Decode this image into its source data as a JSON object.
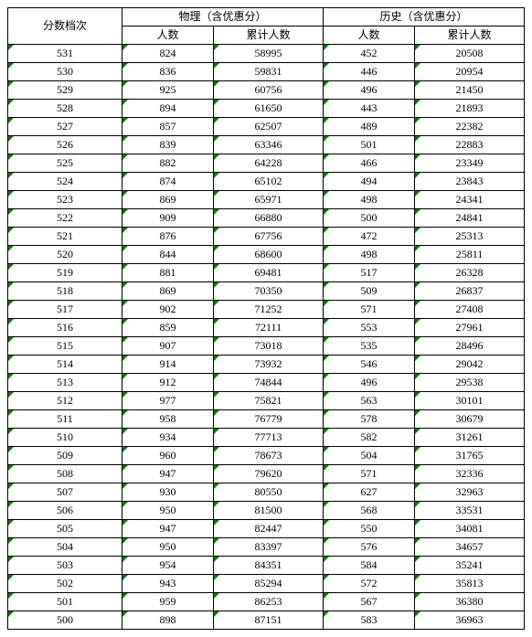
{
  "table": {
    "type": "table",
    "background_color": "#ffffff",
    "border_color": "#000000",
    "marker_color": "#008000",
    "font_family": "SimSun",
    "font_size_pt": 9,
    "header": {
      "score_bracket": "分数档次",
      "physics_group": "物理（含优惠分）",
      "history_group": "历史（含优惠分）",
      "count": "人数",
      "cumulative": "累计人数"
    },
    "columns": [
      "score",
      "phys_count",
      "phys_cum",
      "hist_count",
      "hist_cum"
    ],
    "rows": [
      [
        531,
        824,
        58995,
        452,
        20508
      ],
      [
        530,
        836,
        59831,
        446,
        20954
      ],
      [
        529,
        925,
        60756,
        496,
        21450
      ],
      [
        528,
        894,
        61650,
        443,
        21893
      ],
      [
        527,
        857,
        62507,
        489,
        22382
      ],
      [
        526,
        839,
        63346,
        501,
        22883
      ],
      [
        525,
        882,
        64228,
        466,
        23349
      ],
      [
        524,
        874,
        65102,
        494,
        23843
      ],
      [
        523,
        869,
        65971,
        498,
        24341
      ],
      [
        522,
        909,
        66880,
        500,
        24841
      ],
      [
        521,
        876,
        67756,
        472,
        25313
      ],
      [
        520,
        844,
        68600,
        498,
        25811
      ],
      [
        519,
        881,
        69481,
        517,
        26328
      ],
      [
        518,
        869,
        70350,
        509,
        26837
      ],
      [
        517,
        902,
        71252,
        571,
        27408
      ],
      [
        516,
        859,
        72111,
        553,
        27961
      ],
      [
        515,
        907,
        73018,
        535,
        28496
      ],
      [
        514,
        914,
        73932,
        546,
        29042
      ],
      [
        513,
        912,
        74844,
        496,
        29538
      ],
      [
        512,
        977,
        75821,
        563,
        30101
      ],
      [
        511,
        958,
        76779,
        578,
        30679
      ],
      [
        510,
        934,
        77713,
        582,
        31261
      ],
      [
        509,
        960,
        78673,
        504,
        31765
      ],
      [
        508,
        947,
        79620,
        571,
        32336
      ],
      [
        507,
        930,
        80550,
        627,
        32963
      ],
      [
        506,
        950,
        81500,
        568,
        33531
      ],
      [
        505,
        947,
        82447,
        550,
        34081
      ],
      [
        504,
        950,
        83397,
        576,
        34657
      ],
      [
        503,
        954,
        84351,
        584,
        35241
      ],
      [
        502,
        943,
        85294,
        572,
        35813
      ],
      [
        501,
        959,
        86253,
        567,
        36380
      ],
      [
        500,
        898,
        87151,
        583,
        36963
      ]
    ]
  }
}
